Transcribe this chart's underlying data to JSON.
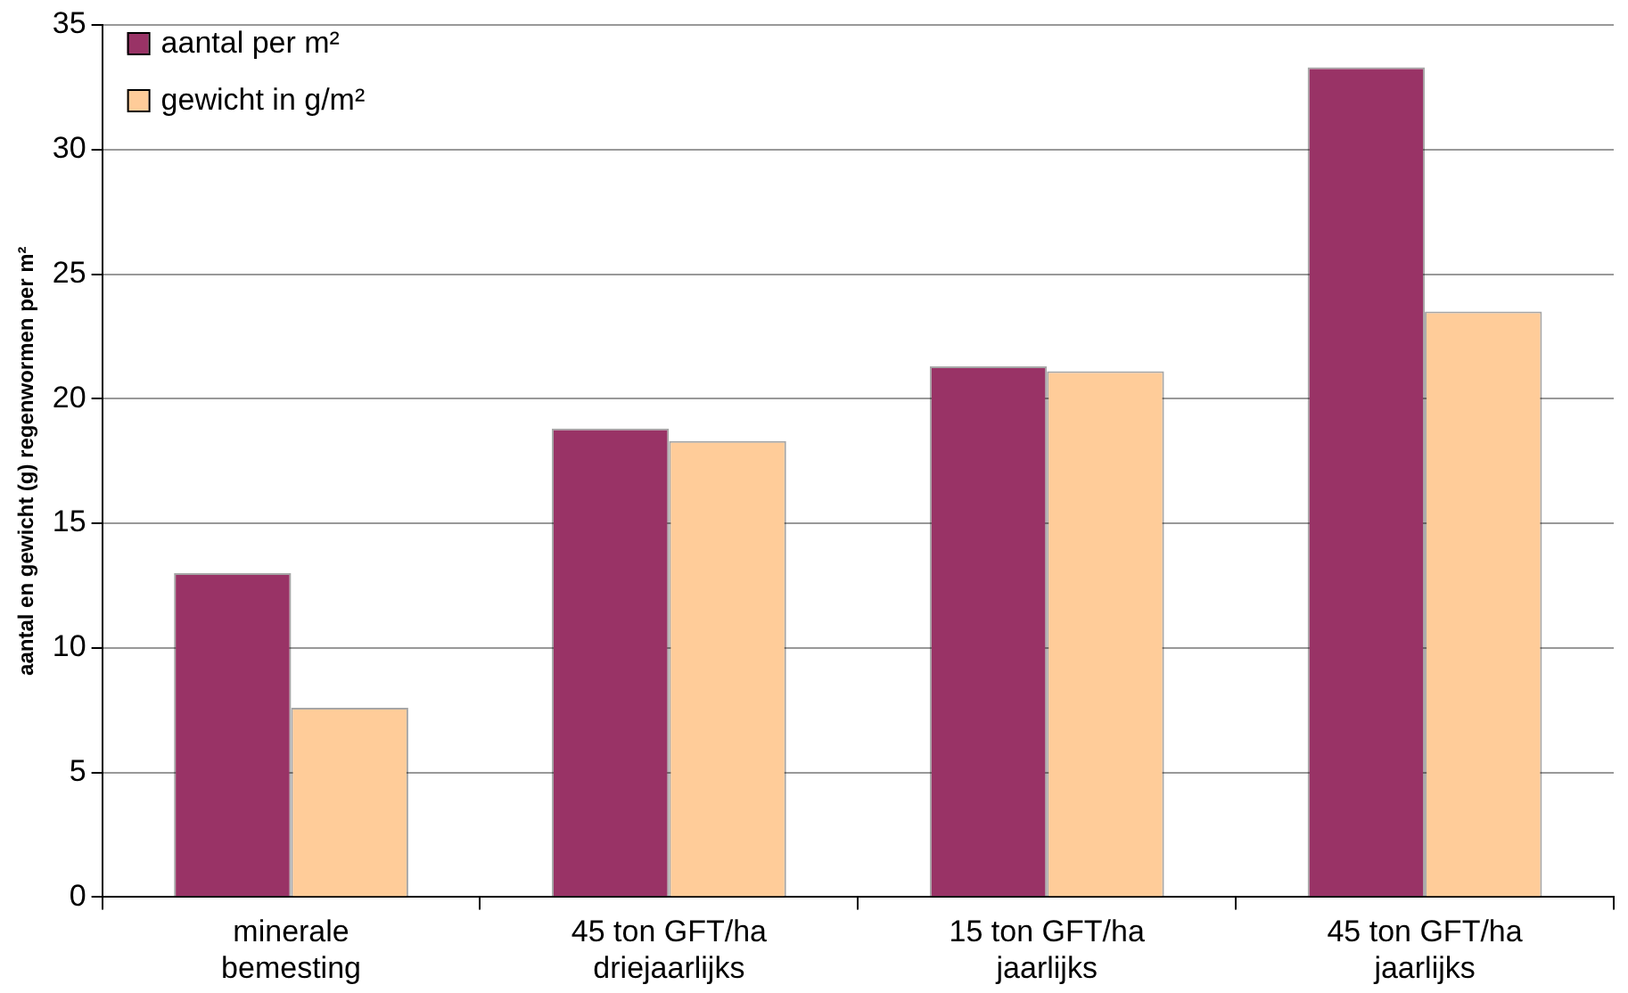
{
  "chart_data": {
    "type": "bar",
    "ylabel": "aantal en gewicht (g) regenwormen per m²",
    "categories": [
      "minerale\nbemesting",
      "45 ton GFT/ha\ndriejaarlijks",
      "15 ton GFT/ha\njaarlijks",
      "45 ton GFT/ha\njaarlijks"
    ],
    "series": [
      {
        "name": "aantal per m²",
        "color": "#993366",
        "values": [
          13,
          18.8,
          21.3,
          33.3
        ]
      },
      {
        "name": "gewicht in g/m²",
        "color": "#ffcc99",
        "values": [
          7.6,
          18.3,
          21.1,
          23.5
        ]
      }
    ],
    "ylim": [
      0,
      35
    ],
    "yticks": [
      0,
      5,
      10,
      15,
      20,
      25,
      30,
      35
    ],
    "grid": "y",
    "legend": "top left"
  }
}
